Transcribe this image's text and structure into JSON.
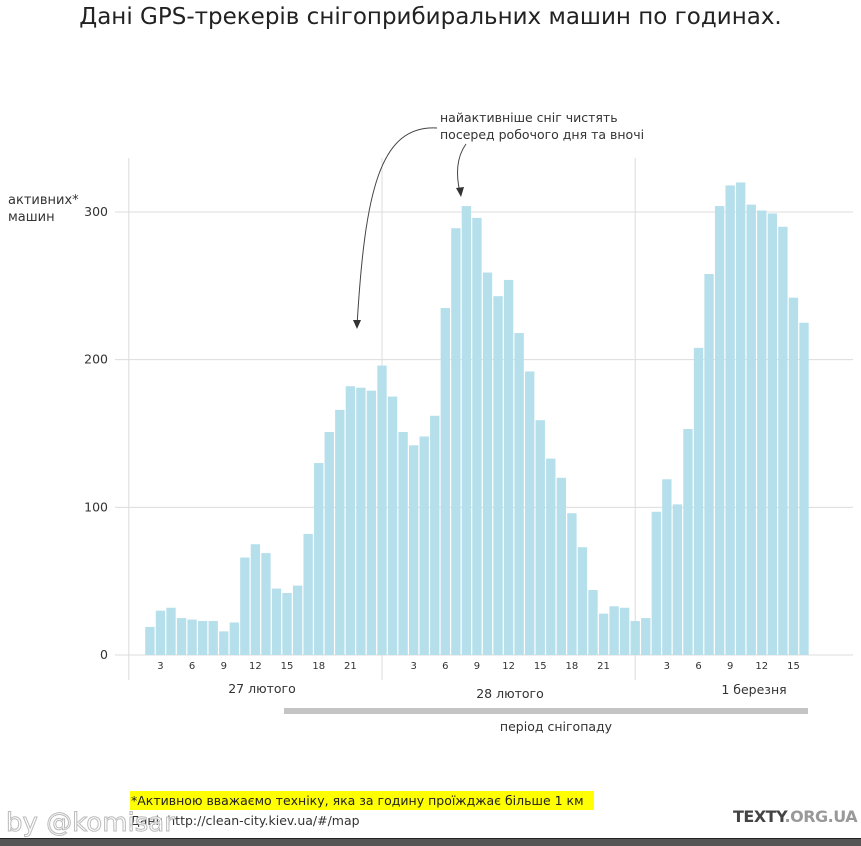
{
  "chart_data": {
    "type": "bar",
    "title": "Дані GPS-трекерів снігоприбиральних машин по годинах.",
    "ylabel": "активних* машин",
    "ylim": [
      0,
      340
    ],
    "yticks": [
      0,
      100,
      200,
      300
    ],
    "grid": true,
    "bar_color": "#b5dfea",
    "days": [
      {
        "label": "27 лютого",
        "start_hour": 2,
        "ticks": [
          3,
          6,
          9,
          12,
          15,
          18,
          21
        ],
        "values": [
          19,
          30,
          32,
          25,
          24,
          23,
          23,
          16,
          22,
          66,
          75,
          69,
          45,
          42,
          47,
          82,
          130,
          151,
          166,
          182,
          181,
          179
        ]
      },
      {
        "label": "28 лютого",
        "start_hour": 0,
        "ticks": [
          3,
          6,
          9,
          12,
          15,
          18,
          21
        ],
        "values": [
          196,
          175,
          151,
          142,
          148,
          162,
          235,
          289,
          304,
          296,
          259,
          243,
          254,
          218,
          192,
          159,
          133,
          120,
          96,
          73,
          44,
          28,
          33,
          32
        ]
      },
      {
        "label": "1 березня",
        "start_hour": 0,
        "ticks": [
          3,
          6,
          9,
          12,
          15
        ],
        "values": [
          23,
          25,
          97,
          119,
          102,
          153,
          208,
          258,
          304,
          318,
          320,
          305,
          301,
          299,
          290,
          242,
          225
        ]
      }
    ],
    "annotation": {
      "line1": "найактивніше сніг чистять",
      "line2": "посеред робочого дня та вночі"
    },
    "snowfall_period": {
      "label": "період снігопаду",
      "from": "27 лютого 15",
      "to": "1 березня 16",
      "color": "#c4c4c4"
    }
  },
  "footer": {
    "note": "*Активною вважаємо техніку, яка за годину проїжджає більше 1 км",
    "note_highlight": "#ffff00",
    "source": "Дані: http://clean-city.kiev.ua/#/map",
    "logo_main": "TEXTY",
    "logo_suffix": ".ORG.UA",
    "watermark": "by @komisar"
  }
}
